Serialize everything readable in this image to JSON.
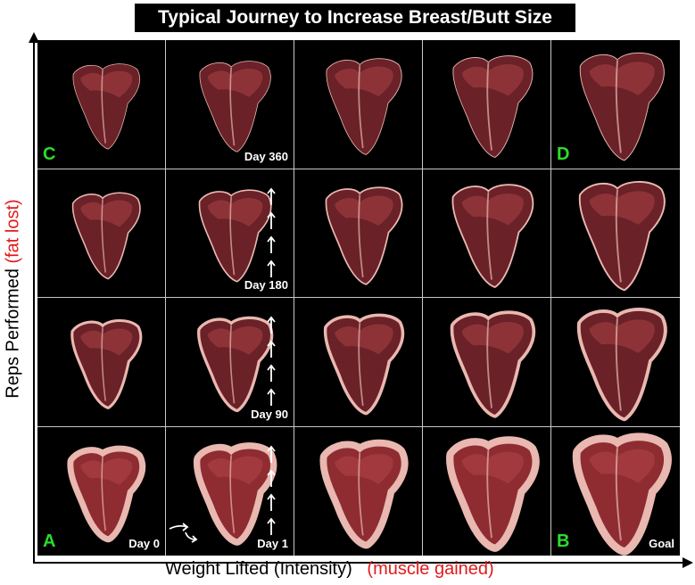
{
  "title": "Typical Journey to Increase Breast/Butt Size",
  "axes": {
    "y_label": "Reps Performed",
    "y_label_red": "(fat lost)",
    "x_label": "Weight Lifted (Intensity)",
    "x_label_red": "(muscle gained)"
  },
  "corners": {
    "A": "A",
    "B": "B",
    "C": "C",
    "D": "D"
  },
  "day_labels": {
    "day0": "Day 0",
    "day1": "Day 1",
    "day90": "Day 90",
    "day180": "Day 180",
    "day360": "Day 360",
    "goal": "Goal"
  },
  "colors": {
    "meat_dark": "#6a2127",
    "meat_mid": "#8e2c32",
    "meat_light": "#b84a4e",
    "fat": "#e9b8b0",
    "corner_label": "#2bdc2b",
    "red_text": "#e21b1b"
  }
}
